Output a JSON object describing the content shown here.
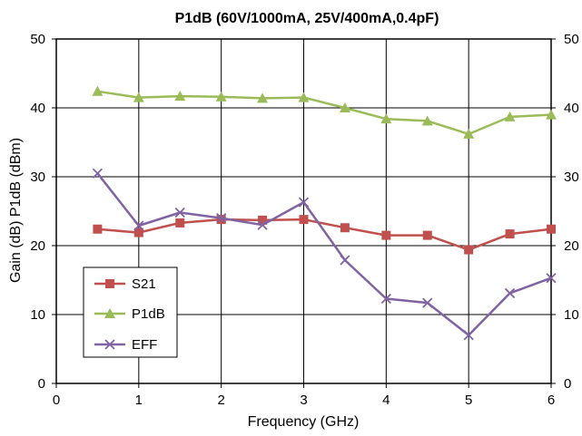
{
  "chart_data": {
    "type": "line",
    "title": "P1dB (60V/1000mA, 25V/400mA,0.4pF)",
    "xlabel": "Frequency (GHz)",
    "ylabel": "Gain (dB) P1dB (dBm)",
    "xlim": [
      0,
      6
    ],
    "ylim": [
      0,
      50
    ],
    "x_ticks": [
      0,
      1,
      2,
      3,
      4,
      5,
      6
    ],
    "y_ticks": [
      0,
      10,
      20,
      30,
      40,
      50
    ],
    "y2_ticks": [
      0,
      10,
      20,
      30,
      40,
      50
    ],
    "grid": true,
    "legend_position": "bottom-left",
    "x": [
      0.5,
      1.0,
      1.5,
      2.0,
      2.5,
      3.0,
      3.5,
      4.0,
      4.5,
      5.0,
      5.5,
      6.0
    ],
    "series": [
      {
        "name": "S21",
        "color": "#C0504D",
        "marker": "square",
        "values": [
          22.4,
          21.9,
          23.3,
          23.8,
          23.7,
          23.8,
          22.6,
          21.5,
          21.5,
          19.4,
          21.7,
          22.4
        ]
      },
      {
        "name": "P1dB",
        "color": "#9BBB59",
        "marker": "triangle",
        "values": [
          42.4,
          41.5,
          41.7,
          41.6,
          41.4,
          41.5,
          40.0,
          38.4,
          38.1,
          36.2,
          38.7,
          39.0
        ]
      },
      {
        "name": "EFF",
        "color": "#8064A2",
        "marker": "x",
        "values": [
          30.5,
          22.9,
          24.8,
          24.0,
          23.0,
          26.3,
          17.9,
          12.3,
          11.7,
          7.0,
          13.1,
          15.3
        ]
      }
    ]
  }
}
